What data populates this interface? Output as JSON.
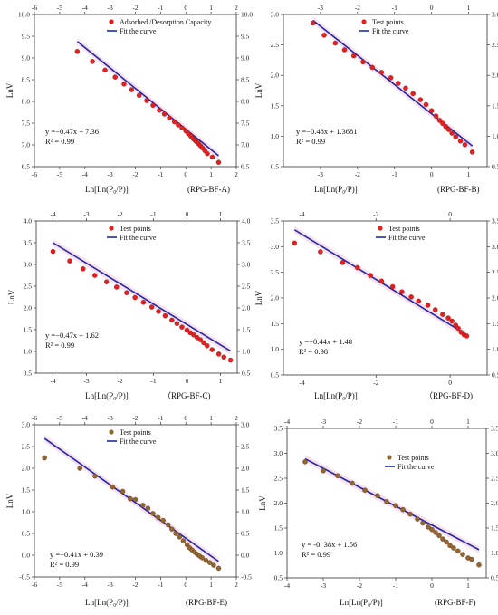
{
  "chart_data": [
    {
      "type": "scatter",
      "panel_label": "(RPG-BF-A)",
      "xlabel": "Ln[Ln(P₀/P)]",
      "ylabel": "LnV",
      "xlim": [
        -6,
        2
      ],
      "ylim": [
        6.5,
        10.0
      ],
      "xticks": [
        "-6",
        "-5",
        "-4",
        "-3",
        "-2",
        "-1",
        "0",
        "1",
        "2"
      ],
      "yticks": [
        "6.5",
        "7.0",
        "7.5",
        "8.0",
        "8.5",
        "9.0",
        "9.5",
        "10.0"
      ],
      "legend": [
        "Adsorbed /Desorption Capacity",
        "Fit the curve"
      ],
      "legend_position": "top-right",
      "equation": "y =−0.47x + 7.36",
      "r2": "R² = 0.99",
      "marker_color": "#e32020",
      "fit": {
        "slope": -0.47,
        "intercept": 7.36,
        "x_range": [
          -4.3,
          1.3
        ]
      },
      "points": [
        [
          -4.3,
          9.15
        ],
        [
          -3.7,
          8.92
        ],
        [
          -3.2,
          8.72
        ],
        [
          -2.8,
          8.56
        ],
        [
          -2.45,
          8.4
        ],
        [
          -2.15,
          8.27
        ],
        [
          -1.85,
          8.14
        ],
        [
          -1.55,
          8.02
        ],
        [
          -1.3,
          7.91
        ],
        [
          -1.05,
          7.8
        ],
        [
          -0.85,
          7.71
        ],
        [
          -0.65,
          7.62
        ],
        [
          -0.45,
          7.53
        ],
        [
          -0.3,
          7.46
        ],
        [
          -0.15,
          7.39
        ],
        [
          0.0,
          7.32
        ],
        [
          0.1,
          7.26
        ],
        [
          0.2,
          7.2
        ],
        [
          0.28,
          7.15
        ],
        [
          0.35,
          7.11
        ],
        [
          0.42,
          7.07
        ],
        [
          0.5,
          7.03
        ],
        [
          0.58,
          6.98
        ],
        [
          0.66,
          6.93
        ],
        [
          0.75,
          6.87
        ],
        [
          0.85,
          6.8
        ],
        [
          1.05,
          6.72
        ],
        [
          1.3,
          6.6
        ]
      ]
    },
    {
      "type": "scatter",
      "panel_label": "(RPG-BF-B)",
      "xlabel": "Ln[Ln(P₀/P)]",
      "ylabel": "LnV",
      "xlim": [
        -4,
        1.5
      ],
      "ylim": [
        0.5,
        3.0
      ],
      "xticks": [
        "-3",
        "-2",
        "-1",
        "0",
        "1"
      ],
      "yticks": [
        "0.5",
        "1.0",
        "1.5",
        "2.0",
        "2.5",
        "3.0"
      ],
      "legend": [
        "Test points",
        "Fit the curve"
      ],
      "legend_position": "top-right",
      "equation": "y =−0.48x + 1.3681",
      "r2": "R² = 0.99",
      "marker_color": "#e32020",
      "fit": {
        "slope": -0.48,
        "intercept": 1.3681,
        "x_range": [
          -3.2,
          1.1
        ]
      },
      "points": [
        [
          -3.2,
          2.86
        ],
        [
          -2.9,
          2.66
        ],
        [
          -2.6,
          2.53
        ],
        [
          -2.35,
          2.42
        ],
        [
          -2.1,
          2.32
        ],
        [
          -1.85,
          2.22
        ],
        [
          -1.6,
          2.13
        ],
        [
          -1.35,
          2.05
        ],
        [
          -1.1,
          1.96
        ],
        [
          -0.9,
          1.87
        ],
        [
          -0.7,
          1.79
        ],
        [
          -0.5,
          1.7
        ],
        [
          -0.3,
          1.6
        ],
        [
          -0.15,
          1.52
        ],
        [
          0.0,
          1.42
        ],
        [
          0.12,
          1.33
        ],
        [
          0.22,
          1.26
        ],
        [
          0.3,
          1.21
        ],
        [
          0.38,
          1.16
        ],
        [
          0.46,
          1.11
        ],
        [
          0.55,
          1.05
        ],
        [
          0.65,
          0.99
        ],
        [
          0.78,
          0.92
        ],
        [
          0.9,
          0.86
        ],
        [
          1.1,
          0.74
        ]
      ]
    },
    {
      "type": "scatter",
      "panel_label": "（RPG-BF-C)",
      "xlabel": "Ln[Ln(P₀/P)]",
      "ylabel": "LnV",
      "xlim": [
        -4.5,
        1.5
      ],
      "ylim": [
        0.5,
        4.0
      ],
      "xticks": [
        "-4",
        "-3",
        "-2",
        "-1",
        "0",
        "1"
      ],
      "yticks": [
        "0.5",
        "1.0",
        "1.5",
        "2.0",
        "2.5",
        "3.0",
        "3.5",
        "4.0"
      ],
      "legend": [
        "Test points",
        "Fit the curve"
      ],
      "legend_position": "top-right",
      "equation": "y =−0.47x + 1.62",
      "r2": "R² = 0.99",
      "marker_color": "#e32020",
      "fit": {
        "slope": -0.47,
        "intercept": 1.62,
        "x_range": [
          -4.0,
          1.3
        ]
      },
      "points": [
        [
          -4.0,
          3.3
        ],
        [
          -3.5,
          3.08
        ],
        [
          -3.1,
          2.9
        ],
        [
          -2.75,
          2.75
        ],
        [
          -2.4,
          2.6
        ],
        [
          -2.1,
          2.48
        ],
        [
          -1.8,
          2.35
        ],
        [
          -1.55,
          2.24
        ],
        [
          -1.3,
          2.13
        ],
        [
          -1.05,
          2.02
        ],
        [
          -0.85,
          1.92
        ],
        [
          -0.65,
          1.82
        ],
        [
          -0.45,
          1.72
        ],
        [
          -0.3,
          1.64
        ],
        [
          -0.15,
          1.56
        ],
        [
          0.0,
          1.49
        ],
        [
          0.1,
          1.43
        ],
        [
          0.2,
          1.38
        ],
        [
          0.3,
          1.32
        ],
        [
          0.4,
          1.27
        ],
        [
          0.5,
          1.2
        ],
        [
          0.6,
          1.13
        ],
        [
          0.75,
          1.04
        ],
        [
          0.95,
          0.94
        ],
        [
          1.1,
          0.87
        ],
        [
          1.3,
          0.8
        ]
      ]
    },
    {
      "type": "scatter",
      "panel_label": "（RPG-BF-D)",
      "xlabel": "Ln[Ln(P₀/P)]",
      "ylabel": "LnV",
      "xlim": [
        -4.5,
        1.0
      ],
      "ylim": [
        0.5,
        3.5
      ],
      "xticks": [
        "-4",
        "-2",
        "0"
      ],
      "yticks": [
        "0.5",
        "1.0",
        "1.5",
        "2.0",
        "2.5",
        "3.0",
        "3.5"
      ],
      "legend": [
        "Test points",
        "Fit the curve"
      ],
      "legend_position": "top-right",
      "equation": "y =−0.44x + 1.48",
      "r2": "R² = 0.98",
      "marker_color": "#e32020",
      "fit": {
        "slope": -0.44,
        "intercept": 1.48,
        "x_range": [
          -4.2,
          0.45
        ]
      },
      "points": [
        [
          -4.2,
          3.07
        ],
        [
          -3.5,
          2.9
        ],
        [
          -2.9,
          2.69
        ],
        [
          -2.5,
          2.59
        ],
        [
          -2.15,
          2.44
        ],
        [
          -1.85,
          2.33
        ],
        [
          -1.55,
          2.22
        ],
        [
          -1.3,
          2.12
        ],
        [
          -1.05,
          2.02
        ],
        [
          -0.85,
          1.94
        ],
        [
          -0.6,
          1.86
        ],
        [
          -0.4,
          1.77
        ],
        [
          -0.2,
          1.68
        ],
        [
          -0.05,
          1.61
        ],
        [
          0.05,
          1.55
        ],
        [
          0.15,
          1.47
        ],
        [
          0.22,
          1.41
        ],
        [
          0.3,
          1.33
        ],
        [
          0.38,
          1.28
        ],
        [
          0.45,
          1.26
        ]
      ]
    },
    {
      "type": "scatter",
      "panel_label": "(RPG-BF-E)",
      "xlabel": "Ln[Ln(P₀/P)]",
      "ylabel": "LnV",
      "xlim": [
        -6,
        2
      ],
      "ylim": [
        -0.5,
        3.0
      ],
      "xticks": [
        "-6",
        "-5",
        "-4",
        "-3",
        "-2",
        "-1",
        "0",
        "1",
        "2"
      ],
      "yticks": [
        "-0.5",
        "0.0",
        "0.5",
        "1.0",
        "1.5",
        "2.0",
        "2.5",
        "3.0"
      ],
      "legend": [
        "Test points",
        "Fit the curve"
      ],
      "legend_position": "top-right",
      "equation": "y =−0.41x + 0.39",
      "r2": "R² = 0.99",
      "marker_color": "#8b6a2f",
      "fit": {
        "slope": -0.41,
        "intercept": 0.39,
        "x_range": [
          -5.6,
          1.3
        ]
      },
      "points": [
        [
          -5.6,
          2.24
        ],
        [
          -4.2,
          2.0
        ],
        [
          -3.6,
          1.82
        ],
        [
          -2.9,
          1.57
        ],
        [
          -2.5,
          1.47
        ],
        [
          -2.2,
          1.3
        ],
        [
          -2.0,
          1.28
        ],
        [
          -1.7,
          1.15
        ],
        [
          -1.5,
          1.08
        ],
        [
          -1.3,
          0.96
        ],
        [
          -1.1,
          0.87
        ],
        [
          -0.9,
          0.8
        ],
        [
          -0.7,
          0.7
        ],
        [
          -0.55,
          0.6
        ],
        [
          -0.4,
          0.5
        ],
        [
          -0.25,
          0.42
        ],
        [
          -0.1,
          0.33
        ],
        [
          0.05,
          0.24
        ],
        [
          0.15,
          0.17
        ],
        [
          0.25,
          0.12
        ],
        [
          0.35,
          0.07
        ],
        [
          0.45,
          0.02
        ],
        [
          0.55,
          -0.02
        ],
        [
          0.65,
          -0.06
        ],
        [
          0.8,
          -0.12
        ],
        [
          0.95,
          -0.17
        ],
        [
          1.1,
          -0.23
        ],
        [
          1.3,
          -0.3
        ]
      ]
    },
    {
      "type": "scatter",
      "panel_label": "(RPG-BF-F)",
      "xlabel": "Ln[Ln(P₀/P)]",
      "ylabel": "LnV",
      "xlim": [
        -4,
        1.5
      ],
      "ylim": [
        0.5,
        3.5
      ],
      "xticks": [
        "-4",
        "-3",
        "-2",
        "-1",
        "0",
        "1"
      ],
      "yticks": [
        "0.5",
        "1.0",
        "1.5",
        "2.0",
        "2.5",
        "3.0",
        "3.5"
      ],
      "legend": [
        "Test points",
        "Fit the curve"
      ],
      "legend_position": "top-right",
      "equation": "y = -0. 38x + 1.56",
      "r2": "R² = 0.99",
      "marker_color": "#8b6a2f",
      "fit": {
        "slope": -0.38,
        "intercept": 1.56,
        "x_range": [
          -3.5,
          1.3
        ]
      },
      "points": [
        [
          -3.5,
          2.83
        ],
        [
          -3.0,
          2.65
        ],
        [
          -2.6,
          2.55
        ],
        [
          -2.2,
          2.4
        ],
        [
          -1.85,
          2.26
        ],
        [
          -1.5,
          2.15
        ],
        [
          -1.25,
          2.03
        ],
        [
          -1.0,
          1.95
        ],
        [
          -0.8,
          1.87
        ],
        [
          -0.6,
          1.78
        ],
        [
          -0.4,
          1.68
        ],
        [
          -0.25,
          1.6
        ],
        [
          -0.1,
          1.52
        ],
        [
          0.0,
          1.47
        ],
        [
          0.1,
          1.41
        ],
        [
          0.2,
          1.35
        ],
        [
          0.3,
          1.28
        ],
        [
          0.4,
          1.22
        ],
        [
          0.5,
          1.15
        ],
        [
          0.6,
          1.1
        ],
        [
          0.72,
          1.04
        ],
        [
          0.85,
          0.97
        ],
        [
          1.0,
          0.9
        ],
        [
          1.1,
          0.87
        ],
        [
          1.3,
          0.76
        ]
      ]
    }
  ]
}
